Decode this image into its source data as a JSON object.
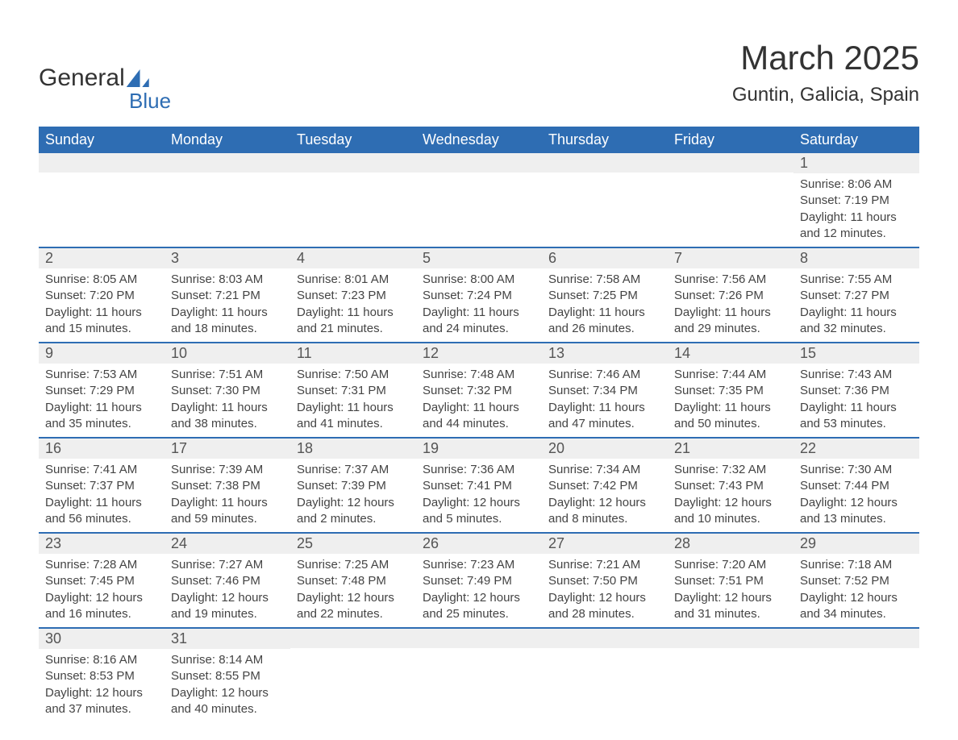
{
  "logo": {
    "word1": "General",
    "word2": "Blue"
  },
  "header": {
    "month_title": "March 2025",
    "location": "Guntin, Galicia, Spain"
  },
  "theme": {
    "accent": "#2e6db3",
    "row_bg": "#efefef",
    "text": "#444444"
  },
  "day_headers": [
    "Sunday",
    "Monday",
    "Tuesday",
    "Wednesday",
    "Thursday",
    "Friday",
    "Saturday"
  ],
  "weeks": [
    [
      null,
      null,
      null,
      null,
      null,
      null,
      {
        "day": "1",
        "sunrise": "Sunrise: 8:06 AM",
        "sunset": "Sunset: 7:19 PM",
        "daylight1": "Daylight: 11 hours",
        "daylight2": "and 12 minutes."
      }
    ],
    [
      {
        "day": "2",
        "sunrise": "Sunrise: 8:05 AM",
        "sunset": "Sunset: 7:20 PM",
        "daylight1": "Daylight: 11 hours",
        "daylight2": "and 15 minutes."
      },
      {
        "day": "3",
        "sunrise": "Sunrise: 8:03 AM",
        "sunset": "Sunset: 7:21 PM",
        "daylight1": "Daylight: 11 hours",
        "daylight2": "and 18 minutes."
      },
      {
        "day": "4",
        "sunrise": "Sunrise: 8:01 AM",
        "sunset": "Sunset: 7:23 PM",
        "daylight1": "Daylight: 11 hours",
        "daylight2": "and 21 minutes."
      },
      {
        "day": "5",
        "sunrise": "Sunrise: 8:00 AM",
        "sunset": "Sunset: 7:24 PM",
        "daylight1": "Daylight: 11 hours",
        "daylight2": "and 24 minutes."
      },
      {
        "day": "6",
        "sunrise": "Sunrise: 7:58 AM",
        "sunset": "Sunset: 7:25 PM",
        "daylight1": "Daylight: 11 hours",
        "daylight2": "and 26 minutes."
      },
      {
        "day": "7",
        "sunrise": "Sunrise: 7:56 AM",
        "sunset": "Sunset: 7:26 PM",
        "daylight1": "Daylight: 11 hours",
        "daylight2": "and 29 minutes."
      },
      {
        "day": "8",
        "sunrise": "Sunrise: 7:55 AM",
        "sunset": "Sunset: 7:27 PM",
        "daylight1": "Daylight: 11 hours",
        "daylight2": "and 32 minutes."
      }
    ],
    [
      {
        "day": "9",
        "sunrise": "Sunrise: 7:53 AM",
        "sunset": "Sunset: 7:29 PM",
        "daylight1": "Daylight: 11 hours",
        "daylight2": "and 35 minutes."
      },
      {
        "day": "10",
        "sunrise": "Sunrise: 7:51 AM",
        "sunset": "Sunset: 7:30 PM",
        "daylight1": "Daylight: 11 hours",
        "daylight2": "and 38 minutes."
      },
      {
        "day": "11",
        "sunrise": "Sunrise: 7:50 AM",
        "sunset": "Sunset: 7:31 PM",
        "daylight1": "Daylight: 11 hours",
        "daylight2": "and 41 minutes."
      },
      {
        "day": "12",
        "sunrise": "Sunrise: 7:48 AM",
        "sunset": "Sunset: 7:32 PM",
        "daylight1": "Daylight: 11 hours",
        "daylight2": "and 44 minutes."
      },
      {
        "day": "13",
        "sunrise": "Sunrise: 7:46 AM",
        "sunset": "Sunset: 7:34 PM",
        "daylight1": "Daylight: 11 hours",
        "daylight2": "and 47 minutes."
      },
      {
        "day": "14",
        "sunrise": "Sunrise: 7:44 AM",
        "sunset": "Sunset: 7:35 PM",
        "daylight1": "Daylight: 11 hours",
        "daylight2": "and 50 minutes."
      },
      {
        "day": "15",
        "sunrise": "Sunrise: 7:43 AM",
        "sunset": "Sunset: 7:36 PM",
        "daylight1": "Daylight: 11 hours",
        "daylight2": "and 53 minutes."
      }
    ],
    [
      {
        "day": "16",
        "sunrise": "Sunrise: 7:41 AM",
        "sunset": "Sunset: 7:37 PM",
        "daylight1": "Daylight: 11 hours",
        "daylight2": "and 56 minutes."
      },
      {
        "day": "17",
        "sunrise": "Sunrise: 7:39 AM",
        "sunset": "Sunset: 7:38 PM",
        "daylight1": "Daylight: 11 hours",
        "daylight2": "and 59 minutes."
      },
      {
        "day": "18",
        "sunrise": "Sunrise: 7:37 AM",
        "sunset": "Sunset: 7:39 PM",
        "daylight1": "Daylight: 12 hours",
        "daylight2": "and 2 minutes."
      },
      {
        "day": "19",
        "sunrise": "Sunrise: 7:36 AM",
        "sunset": "Sunset: 7:41 PM",
        "daylight1": "Daylight: 12 hours",
        "daylight2": "and 5 minutes."
      },
      {
        "day": "20",
        "sunrise": "Sunrise: 7:34 AM",
        "sunset": "Sunset: 7:42 PM",
        "daylight1": "Daylight: 12 hours",
        "daylight2": "and 8 minutes."
      },
      {
        "day": "21",
        "sunrise": "Sunrise: 7:32 AM",
        "sunset": "Sunset: 7:43 PM",
        "daylight1": "Daylight: 12 hours",
        "daylight2": "and 10 minutes."
      },
      {
        "day": "22",
        "sunrise": "Sunrise: 7:30 AM",
        "sunset": "Sunset: 7:44 PM",
        "daylight1": "Daylight: 12 hours",
        "daylight2": "and 13 minutes."
      }
    ],
    [
      {
        "day": "23",
        "sunrise": "Sunrise: 7:28 AM",
        "sunset": "Sunset: 7:45 PM",
        "daylight1": "Daylight: 12 hours",
        "daylight2": "and 16 minutes."
      },
      {
        "day": "24",
        "sunrise": "Sunrise: 7:27 AM",
        "sunset": "Sunset: 7:46 PM",
        "daylight1": "Daylight: 12 hours",
        "daylight2": "and 19 minutes."
      },
      {
        "day": "25",
        "sunrise": "Sunrise: 7:25 AM",
        "sunset": "Sunset: 7:48 PM",
        "daylight1": "Daylight: 12 hours",
        "daylight2": "and 22 minutes."
      },
      {
        "day": "26",
        "sunrise": "Sunrise: 7:23 AM",
        "sunset": "Sunset: 7:49 PM",
        "daylight1": "Daylight: 12 hours",
        "daylight2": "and 25 minutes."
      },
      {
        "day": "27",
        "sunrise": "Sunrise: 7:21 AM",
        "sunset": "Sunset: 7:50 PM",
        "daylight1": "Daylight: 12 hours",
        "daylight2": "and 28 minutes."
      },
      {
        "day": "28",
        "sunrise": "Sunrise: 7:20 AM",
        "sunset": "Sunset: 7:51 PM",
        "daylight1": "Daylight: 12 hours",
        "daylight2": "and 31 minutes."
      },
      {
        "day": "29",
        "sunrise": "Sunrise: 7:18 AM",
        "sunset": "Sunset: 7:52 PM",
        "daylight1": "Daylight: 12 hours",
        "daylight2": "and 34 minutes."
      }
    ],
    [
      {
        "day": "30",
        "sunrise": "Sunrise: 8:16 AM",
        "sunset": "Sunset: 8:53 PM",
        "daylight1": "Daylight: 12 hours",
        "daylight2": "and 37 minutes."
      },
      {
        "day": "31",
        "sunrise": "Sunrise: 8:14 AM",
        "sunset": "Sunset: 8:55 PM",
        "daylight1": "Daylight: 12 hours",
        "daylight2": "and 40 minutes."
      },
      null,
      null,
      null,
      null,
      null
    ]
  ]
}
